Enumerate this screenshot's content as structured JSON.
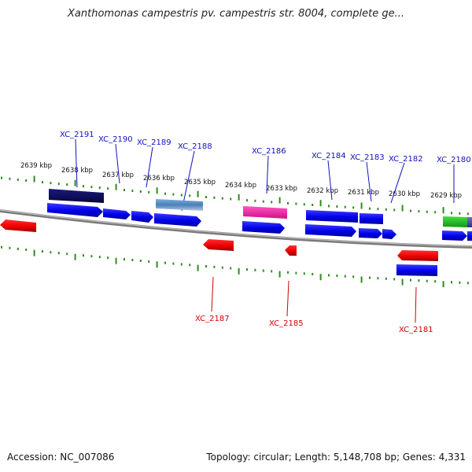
{
  "title": "Xanthomonas campestris pv. campestris str. 8004, complete ge...",
  "footer": {
    "accession": "Accession: NC_007086",
    "topology": "Topology: circular; Length: 5,148,708 bp; Genes: 4,331"
  },
  "ticks": [
    {
      "label": "2639 kbp"
    },
    {
      "label": "2638 kbp"
    },
    {
      "label": "2637 kbp"
    },
    {
      "label": "2636 kbp"
    },
    {
      "label": "2635 kbp"
    },
    {
      "label": "2634 kbp"
    },
    {
      "label": "2633 kbp"
    },
    {
      "label": "2632 kbp"
    },
    {
      "label": "2631 kbp"
    },
    {
      "label": "2630 kbp"
    },
    {
      "label": "2629 kbp"
    }
  ],
  "genes_top": [
    {
      "label": "XC_2191"
    },
    {
      "label": "XC_2190"
    },
    {
      "label": "XC_2189"
    },
    {
      "label": "XC_2188"
    },
    {
      "label": "XC_2186"
    },
    {
      "label": "XC_2184"
    },
    {
      "label": "XC_2183"
    },
    {
      "label": "XC_2182"
    },
    {
      "label": "XC_2180"
    }
  ],
  "genes_bottom": [
    {
      "label": "XC_2187"
    },
    {
      "label": "XC_2185"
    },
    {
      "label": "XC_2181"
    }
  ],
  "colors": {
    "forward_gene": "#1010e0",
    "reverse_gene": "#e80000",
    "tick_marks": "#2e8b1e",
    "backbone": "#888888",
    "top_label": "#1010c0",
    "bottom_label": "#d00000",
    "highlight_navy": "#0a0a60",
    "highlight_steel": "#5a8fc0",
    "highlight_pink": "#ee2aa0",
    "highlight_green": "#22bb22"
  }
}
